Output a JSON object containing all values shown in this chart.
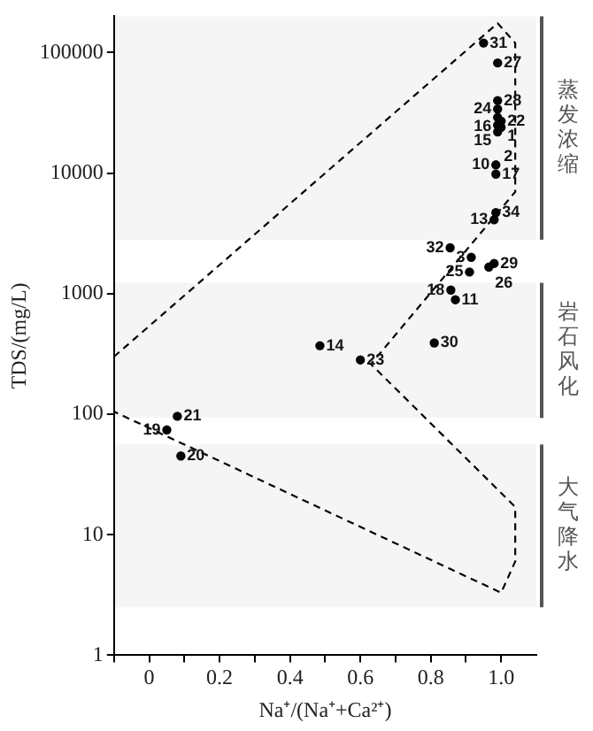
{
  "chart_data": {
    "type": "scatter",
    "xlabel": "Na⁺/(Na⁺+Ca²⁺)",
    "ylabel": "TDS/(mg/L)",
    "log": "y",
    "grid": false,
    "legend": false,
    "marker": "circle",
    "xlim": [
      -0.1,
      1.1
    ],
    "xticks": [
      {
        "value": -0.1,
        "label": null
      },
      0,
      {
        "value": 0.1,
        "label": null
      },
      0.2,
      {
        "value": 0.3,
        "label": null
      },
      0.4,
      {
        "value": 0.5,
        "label": null
      },
      0.6,
      {
        "value": 0.7,
        "label": null
      },
      0.8,
      {
        "value": 0.9,
        "label": null
      },
      {
        "value": 1,
        "label": "1.0"
      }
    ],
    "ylim": [
      1,
      200000
    ],
    "yticks": [
      1,
      10,
      100,
      1000,
      10000,
      100000
    ],
    "series": [
      {
        "type": "scatter",
        "color": "#000000",
        "x": [
          0.95,
          0.99,
          0.99,
          0.99,
          0.99,
          1.0,
          0.99,
          1.0,
          0.99,
          0.985,
          0.985,
          0.985,
          0.98,
          0.855,
          0.915,
          0.98,
          0.965,
          0.91,
          0.857,
          0.87,
          0.485,
          0.6,
          0.81,
          0.08,
          0.05,
          0.09
        ],
        "values": [
          120000,
          82000,
          40000,
          34000,
          29000,
          27000,
          25000,
          24000,
          22000,
          11700,
          9800,
          4700,
          4100,
          2400,
          2000,
          1780,
          1660,
          1510,
          1070,
          890,
          370,
          282,
          390,
          96,
          74,
          45
        ]
      },
      {
        "type": "line",
        "color": "#000000",
        "line_style": "dashed",
        "marker": "none",
        "x": [
          -0.1,
          0.99,
          1.04,
          1.04,
          0.63,
          1.04,
          1.04,
          1.0,
          -0.1
        ],
        "values": [
          300,
          175000,
          120000,
          7000,
          260,
          17,
          6,
          3.3,
          105
        ]
      }
    ],
    "bands": [
      {
        "axis": "y",
        "from": 2800,
        "to": 200000,
        "label": "蒸发浓缩",
        "color": "#555555"
      },
      {
        "axis": "y",
        "from": 93,
        "to": 1230,
        "label": "岩石风化",
        "color": "#555555"
      },
      {
        "axis": "y",
        "from": 2.5,
        "to": 56,
        "label": "大气降水",
        "color": "#555555"
      }
    ],
    "annotations": [
      {
        "text": "31",
        "x": 0.95,
        "y": 120000
      },
      {
        "text": "27",
        "x": 0.99,
        "y": 82000
      },
      {
        "text": "28",
        "x": 0.99,
        "y": 40000
      },
      {
        "text": "24",
        "x": 0.99,
        "y": 34000
      },
      {
        "text": "22",
        "x": 1.0,
        "y": 27000
      },
      {
        "text": "1",
        "x": 1.0,
        "y": 24000
      },
      {
        "text": "16",
        "x": 0.99,
        "y": 29000
      },
      {
        "text": "15",
        "x": 0.99,
        "y": 25000
      },
      {
        "text": "2",
        "x": 0.99,
        "y": 22000
      },
      {
        "text": "10",
        "x": 0.985,
        "y": 11700
      },
      {
        "text": "17",
        "x": 0.985,
        "y": 9800
      },
      {
        "text": "34",
        "x": 0.985,
        "y": 4700
      },
      {
        "text": "13",
        "x": 0.98,
        "y": 4100
      },
      {
        "text": "32",
        "x": 0.855,
        "y": 2400
      },
      {
        "text": "3",
        "x": 0.915,
        "y": 2000
      },
      {
        "text": "29",
        "x": 0.98,
        "y": 1780
      },
      {
        "text": "26",
        "x": 0.965,
        "y": 1660
      },
      {
        "text": "25",
        "x": 0.91,
        "y": 1510
      },
      {
        "text": "18",
        "x": 0.857,
        "y": 1070
      },
      {
        "text": "11",
        "x": 0.87,
        "y": 890
      },
      {
        "text": "14",
        "x": 0.485,
        "y": 370
      },
      {
        "text": "23",
        "x": 0.6,
        "y": 282
      },
      {
        "text": "30",
        "x": 0.81,
        "y": 390
      },
      {
        "text": "21",
        "x": 0.08,
        "y": 96
      },
      {
        "text": "19",
        "x": 0.05,
        "y": 74
      },
      {
        "text": "20",
        "x": 0.09,
        "y": 45
      }
    ]
  }
}
